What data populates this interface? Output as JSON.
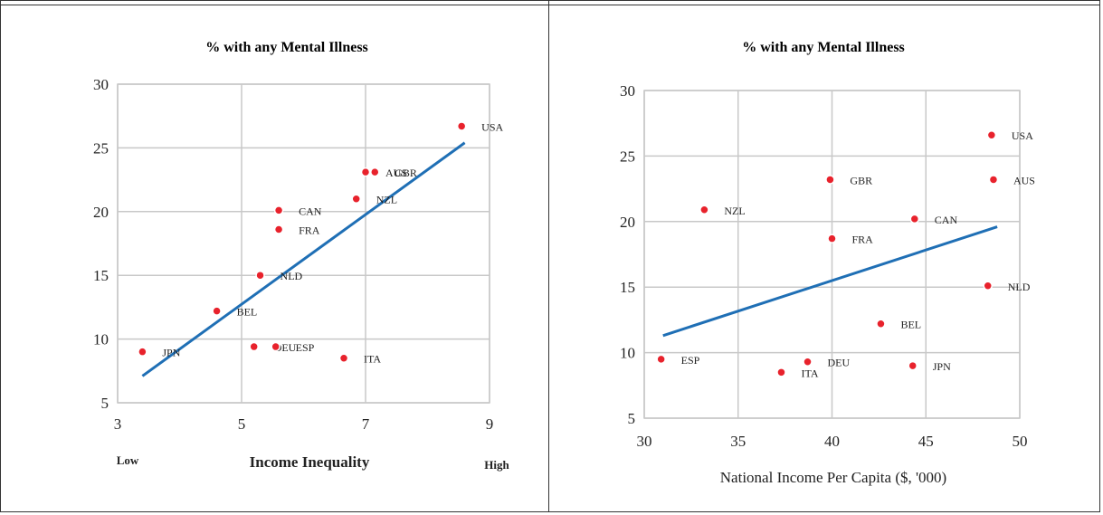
{
  "chart_data": [
    {
      "type": "scatter",
      "title": "% with any Mental Illness",
      "xlabel": "Income Inequality",
      "x_low_label": "Low",
      "x_high_label": "High",
      "ylabel": "",
      "xlim": [
        3,
        9
      ],
      "ylim": [
        5,
        30
      ],
      "xticks": [
        3,
        5,
        7,
        9
      ],
      "yticks": [
        5,
        10,
        15,
        20,
        25,
        30
      ],
      "grid": true,
      "marker_color": "#e8222c",
      "trend_color": "#1f6fb5",
      "trendline": {
        "x": [
          3.4,
          8.6
        ],
        "y": [
          7.1,
          25.4
        ]
      },
      "points": [
        {
          "label": "USA",
          "x": 8.55,
          "y": 26.7
        },
        {
          "label": "AUS",
          "x": 7.0,
          "y": 23.1
        },
        {
          "label": "GBR",
          "x": 7.15,
          "y": 23.1
        },
        {
          "label": "NZL",
          "x": 6.85,
          "y": 21.0
        },
        {
          "label": "CAN",
          "x": 5.6,
          "y": 20.1
        },
        {
          "label": "FRA",
          "x": 5.6,
          "y": 18.6
        },
        {
          "label": "NLD",
          "x": 5.3,
          "y": 15.0
        },
        {
          "label": "BEL",
          "x": 4.6,
          "y": 12.2
        },
        {
          "label": "DEU",
          "x": 5.2,
          "y": 9.4
        },
        {
          "label": "ESP",
          "x": 5.55,
          "y": 9.4
        },
        {
          "label": "ITA",
          "x": 6.65,
          "y": 8.5
        },
        {
          "label": "JPN",
          "x": 3.4,
          "y": 9.0
        }
      ]
    },
    {
      "type": "scatter",
      "title": "% with any Mental Illness",
      "xlabel": "National Income Per Capita ($, '000)",
      "ylabel": "",
      "xlim": [
        30,
        50
      ],
      "ylim": [
        5,
        30
      ],
      "xticks": [
        30,
        35,
        40,
        45,
        50
      ],
      "yticks": [
        5,
        10,
        15,
        20,
        25,
        30
      ],
      "grid": true,
      "marker_color": "#e8222c",
      "trend_color": "#1f6fb5",
      "trendline": {
        "x": [
          31,
          48.8
        ],
        "y": [
          11.3,
          19.6
        ]
      },
      "points": [
        {
          "label": "USA",
          "x": 48.5,
          "y": 26.6
        },
        {
          "label": "AUS",
          "x": 48.6,
          "y": 23.2
        },
        {
          "label": "GBR",
          "x": 39.9,
          "y": 23.2
        },
        {
          "label": "NZL",
          "x": 33.2,
          "y": 20.9
        },
        {
          "label": "CAN",
          "x": 44.4,
          "y": 20.2
        },
        {
          "label": "FRA",
          "x": 40.0,
          "y": 18.7
        },
        {
          "label": "NLD",
          "x": 48.3,
          "y": 15.1
        },
        {
          "label": "BEL",
          "x": 42.6,
          "y": 12.2
        },
        {
          "label": "ESP",
          "x": 30.9,
          "y": 9.5
        },
        {
          "label": "DEU",
          "x": 38.7,
          "y": 9.3
        },
        {
          "label": "ITA",
          "x": 37.3,
          "y": 8.5
        },
        {
          "label": "JPN",
          "x": 44.3,
          "y": 9.0
        }
      ]
    }
  ]
}
